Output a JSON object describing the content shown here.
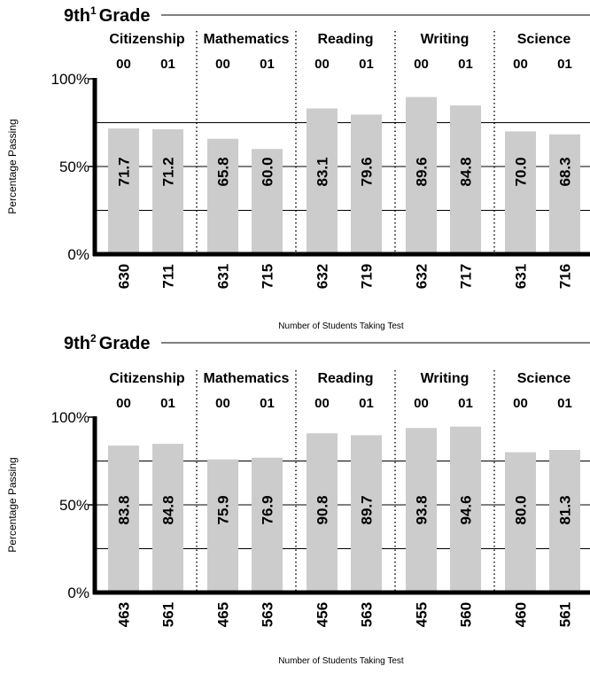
{
  "chart_data": [
    {
      "type": "bar",
      "title": "9th",
      "title_sup": "1",
      "title_suffix": "Grade",
      "ylabel": "Percentage Passing",
      "xlabel": "Number of Students Taking Test",
      "ylim": [
        0,
        100
      ],
      "ytick_labels": [
        "0%",
        "50%",
        "100%"
      ],
      "subjects": [
        {
          "name": "Citizenship",
          "bars": [
            {
              "year": "00",
              "value": 71.7,
              "label": "71.7",
              "n": "630"
            },
            {
              "year": "01",
              "value": 71.2,
              "label": "71.2",
              "n": "711"
            }
          ]
        },
        {
          "name": "Mathematics",
          "bars": [
            {
              "year": "00",
              "value": 65.8,
              "label": "65.8",
              "n": "631"
            },
            {
              "year": "01",
              "value": 60.0,
              "label": "60.0",
              "n": "715"
            }
          ]
        },
        {
          "name": "Reading",
          "bars": [
            {
              "year": "00",
              "value": 83.1,
              "label": "83.1",
              "n": "632"
            },
            {
              "year": "01",
              "value": 79.6,
              "label": "79.6",
              "n": "719"
            }
          ]
        },
        {
          "name": "Writing",
          "bars": [
            {
              "year": "00",
              "value": 89.6,
              "label": "89.6",
              "n": "632"
            },
            {
              "year": "01",
              "value": 84.8,
              "label": "84.8",
              "n": "717"
            }
          ]
        },
        {
          "name": "Science",
          "bars": [
            {
              "year": "00",
              "value": 70.0,
              "label": "70.0",
              "n": "631"
            },
            {
              "year": "01",
              "value": 68.3,
              "label": "68.3",
              "n": "716"
            }
          ]
        }
      ],
      "bar_color": "#cccccc"
    },
    {
      "type": "bar",
      "title": "9th",
      "title_sup": "2",
      "title_suffix": "Grade",
      "ylabel": "Percentage Passing",
      "xlabel": "Number of Students Taking Test",
      "ylim": [
        0,
        100
      ],
      "ytick_labels": [
        "0%",
        "50%",
        "100%"
      ],
      "subjects": [
        {
          "name": "Citizenship",
          "bars": [
            {
              "year": "00",
              "value": 83.8,
              "label": "83.8",
              "n": "463"
            },
            {
              "year": "01",
              "value": 84.8,
              "label": "84.8",
              "n": "561"
            }
          ]
        },
        {
          "name": "Mathematics",
          "bars": [
            {
              "year": "00",
              "value": 75.9,
              "label": "75.9",
              "n": "465"
            },
            {
              "year": "01",
              "value": 76.9,
              "label": "76.9",
              "n": "563"
            }
          ]
        },
        {
          "name": "Reading",
          "bars": [
            {
              "year": "00",
              "value": 90.8,
              "label": "90.8",
              "n": "456"
            },
            {
              "year": "01",
              "value": 89.7,
              "label": "89.7",
              "n": "563"
            }
          ]
        },
        {
          "name": "Writing",
          "bars": [
            {
              "year": "00",
              "value": 93.8,
              "label": "93.8",
              "n": "455"
            },
            {
              "year": "01",
              "value": 94.6,
              "label": "94.6",
              "n": "560"
            }
          ]
        },
        {
          "name": "Science",
          "bars": [
            {
              "year": "00",
              "value": 80.0,
              "label": "80.0",
              "n": "460"
            },
            {
              "year": "01",
              "value": 81.3,
              "label": "81.3",
              "n": "561"
            }
          ]
        }
      ],
      "bar_color": "#cccccc"
    }
  ]
}
